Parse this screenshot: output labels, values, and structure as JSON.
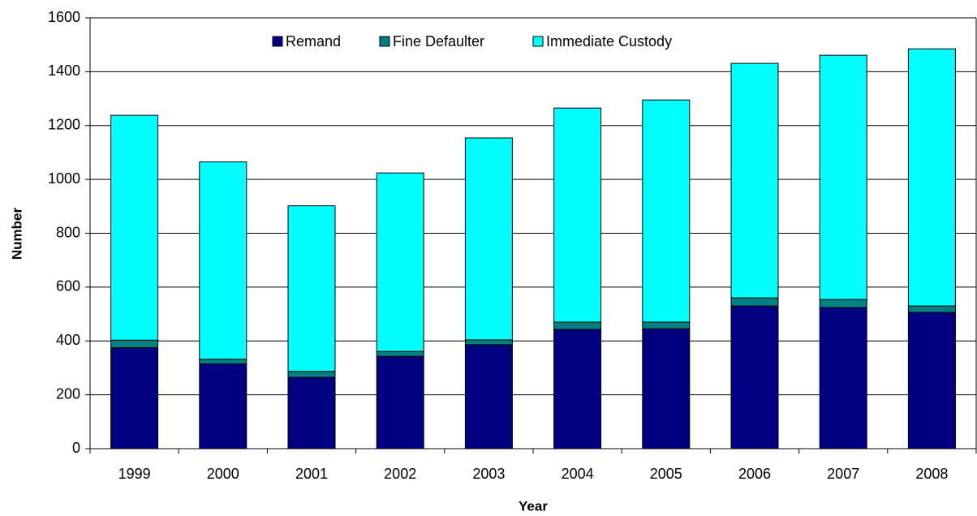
{
  "chart_data": {
    "type": "stacked_bar",
    "x_label": "Year",
    "y_label": "Number",
    "categories": [
      "1999",
      "2000",
      "2001",
      "2002",
      "2003",
      "2004",
      "2005",
      "2006",
      "2007",
      "2008"
    ],
    "series": [
      {
        "name": "Remand",
        "color": "#000080",
        "values": [
          375,
          315,
          265,
          343,
          386,
          443,
          445,
          530,
          524,
          506
        ]
      },
      {
        "name": "Fine Defaulter",
        "color": "#008080",
        "values": [
          28,
          17,
          22,
          18,
          18,
          27,
          25,
          30,
          30,
          24
        ]
      },
      {
        "name": "Immediate Custody",
        "color": "#00ffff",
        "values": [
          835,
          733,
          615,
          663,
          750,
          795,
          825,
          871,
          907,
          955
        ]
      }
    ],
    "ylim": [
      0,
      1600
    ],
    "yticks": [
      0,
      200,
      400,
      600,
      800,
      1000,
      1200,
      1400,
      1600
    ],
    "grid": true,
    "legend": "top"
  }
}
